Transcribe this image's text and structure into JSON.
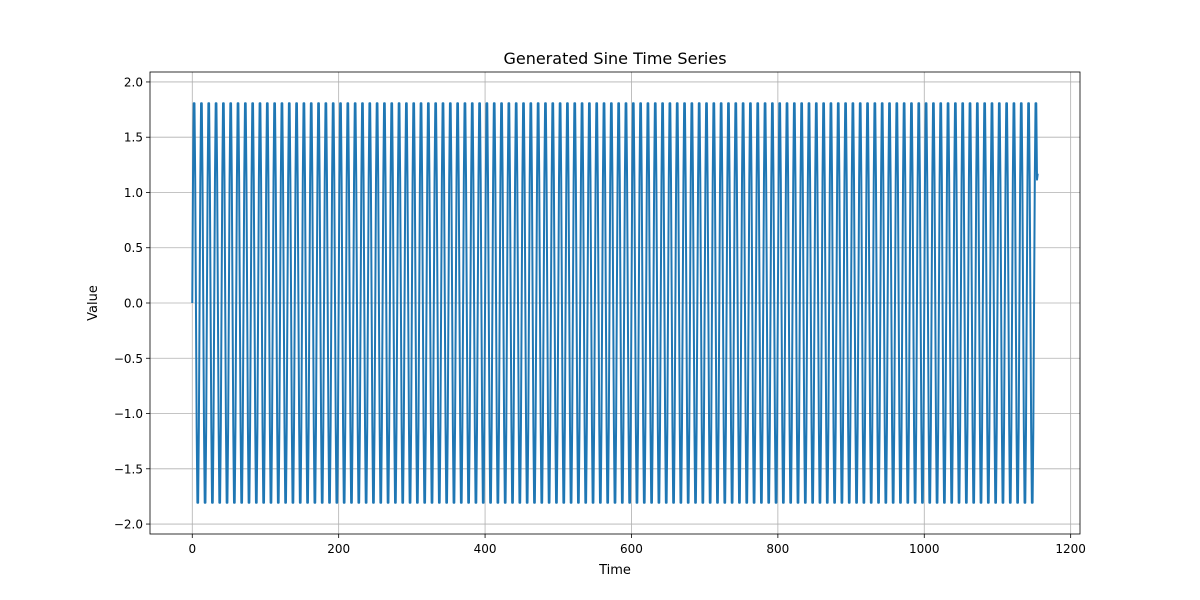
{
  "chart_data": {
    "type": "line",
    "title": "Generated Sine Time Series",
    "xlabel": "Time",
    "ylabel": "Value",
    "xlim": [
      -57.75,
      1212.75
    ],
    "ylim": [
      -2.09,
      2.09
    ],
    "x_ticks": [
      0,
      200,
      400,
      600,
      800,
      1000,
      1200
    ],
    "x_tick_labels": [
      "0",
      "200",
      "400",
      "600",
      "800",
      "1000",
      "1200"
    ],
    "y_ticks": [
      -2.0,
      -1.5,
      -1.0,
      -0.5,
      0.0,
      0.5,
      1.0,
      1.5,
      2.0
    ],
    "y_tick_labels": [
      "−2.0",
      "−1.5",
      "−1.0",
      "−0.5",
      "0.0",
      "0.5",
      "1.0",
      "1.5",
      "2.0"
    ],
    "grid": true,
    "series": [
      {
        "color": "#1f77b4",
        "x_start": 0,
        "x_end": 1155,
        "x_step": 1,
        "amplitude": 1.9,
        "period": 10,
        "start_value": 0.0,
        "end_value": 1.17
      }
    ]
  }
}
